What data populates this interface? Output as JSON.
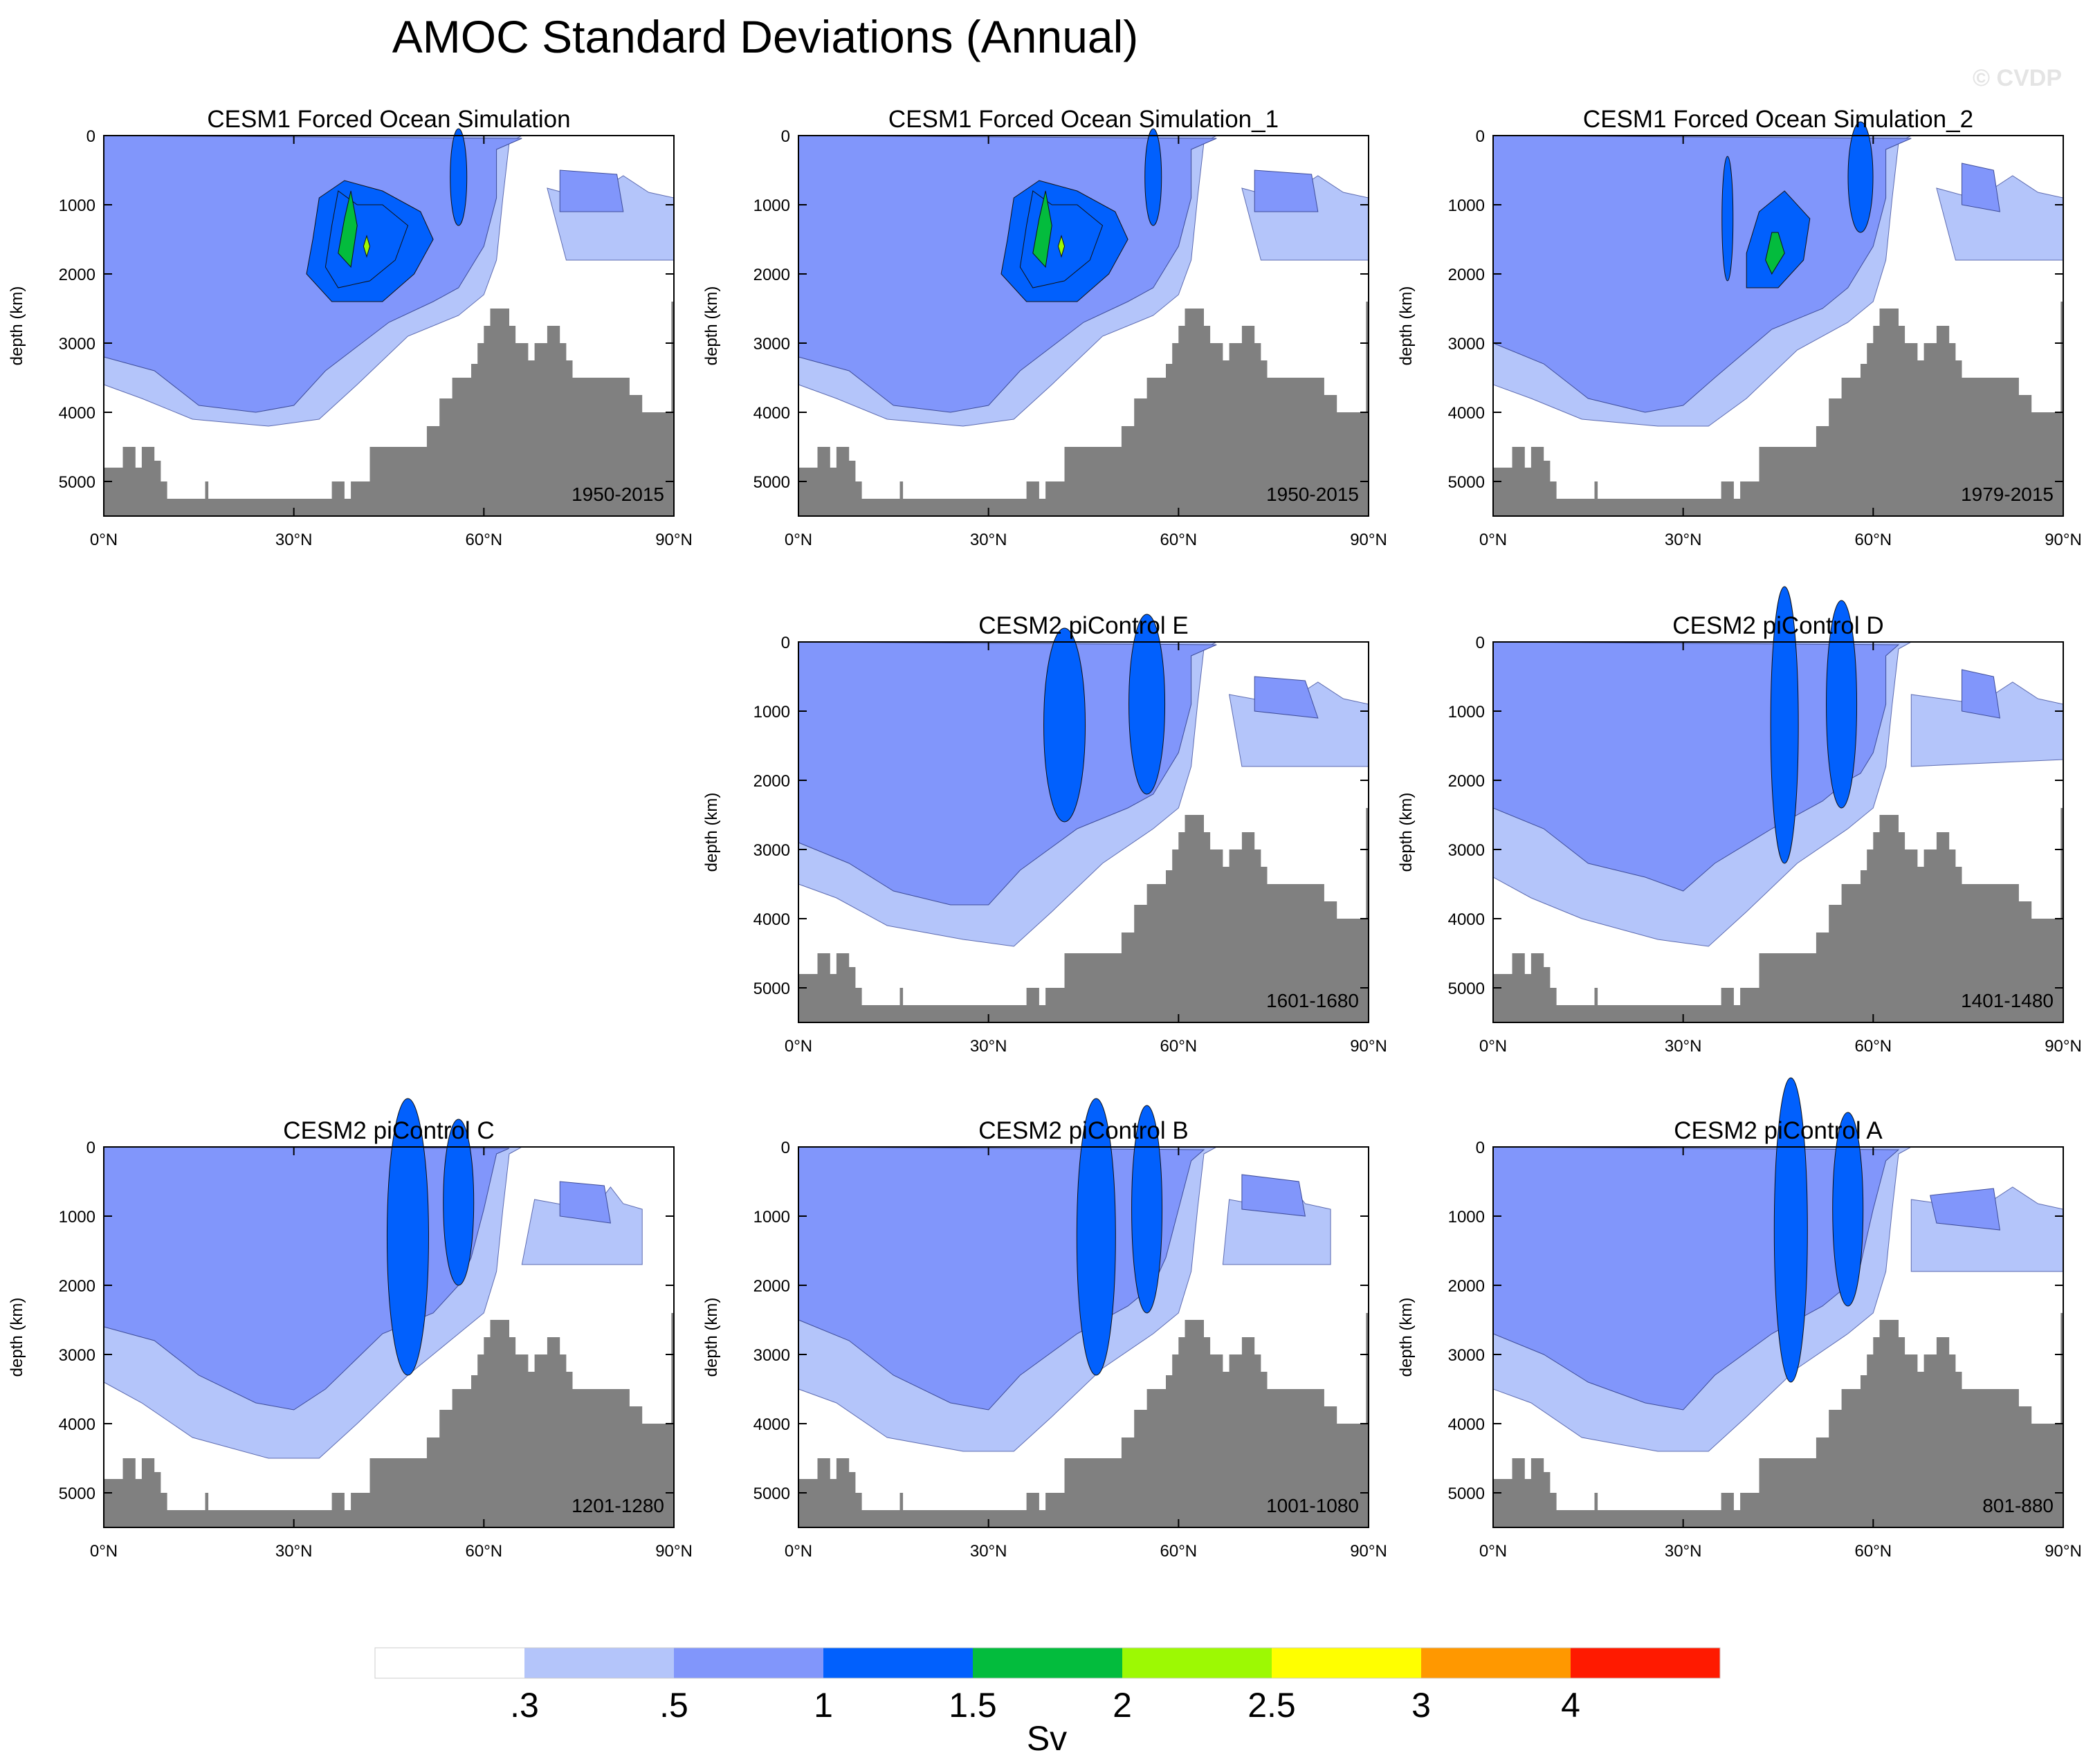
{
  "figure": {
    "title": "AMOC Standard Deviations (Annual)",
    "watermark": "© CVDP"
  },
  "chart_data": {
    "type": "contour",
    "xlabel": "",
    "ylabel": "depth (km)",
    "x_ticks": [
      "0°N",
      "30°N",
      "60°N",
      "90°N"
    ],
    "y_ticks": [
      "0",
      "1000",
      "2000",
      "3000",
      "4000",
      "5000"
    ],
    "xlim": [
      0,
      90
    ],
    "ylim": [
      5500,
      0
    ],
    "colors": {
      "land": "#808080",
      "frame": "#000000"
    },
    "colorbar": {
      "label": "Sv",
      "levels": [
        ".3",
        ".5",
        "1",
        "1.5",
        "2",
        "2.5",
        "3",
        "4"
      ],
      "colors": [
        "#ffffff",
        "#b4c5fa",
        "#8196fb",
        "#0160fd",
        "#03bc3d",
        "#9df903",
        "#ffff00",
        "#ff9800",
        "#ff1a00"
      ]
    },
    "panels": [
      {
        "title": "CESM1 Forced Ocean Simulation",
        "period": "1950-2015",
        "max_level": 2.5,
        "variant": 0
      },
      {
        "title": "CESM1 Forced Ocean Simulation_1",
        "period": "1950-2015",
        "max_level": 2.5,
        "variant": 0
      },
      {
        "title": "CESM1 Forced Ocean Simulation_2",
        "period": "1979-2015",
        "max_level": 2.0,
        "variant": 1
      },
      {
        "title": "CESM2 piControl E",
        "period": "1601-1680",
        "max_level": 1.5,
        "variant": 2
      },
      {
        "title": "CESM2 piControl D",
        "period": "1401-1480",
        "max_level": 1.5,
        "variant": 3
      },
      {
        "title": "CESM2 piControl C",
        "period": "1201-1280",
        "max_level": 1.5,
        "variant": 4
      },
      {
        "title": "CESM2 piControl B",
        "period": "1001-1080",
        "max_level": 1.5,
        "variant": 5
      },
      {
        "title": "CESM2 piControl A",
        "period": "801-880",
        "max_level": 1.5,
        "variant": 6
      }
    ],
    "bathymetry_depth_m": [
      [
        0,
        4800
      ],
      [
        3,
        4800
      ],
      [
        3,
        4500
      ],
      [
        5,
        4500
      ],
      [
        5,
        4800
      ],
      [
        6,
        4800
      ],
      [
        6,
        4500
      ],
      [
        8,
        4500
      ],
      [
        8,
        4700
      ],
      [
        9,
        4700
      ],
      [
        9,
        5000
      ],
      [
        10,
        5000
      ],
      [
        10,
        5250
      ],
      [
        16,
        5250
      ],
      [
        16,
        5000
      ],
      [
        16.5,
        5000
      ],
      [
        16.5,
        5250
      ],
      [
        36,
        5250
      ],
      [
        36,
        5000
      ],
      [
        38,
        5000
      ],
      [
        38,
        5250
      ],
      [
        39,
        5250
      ],
      [
        39,
        5000
      ],
      [
        42,
        5000
      ],
      [
        42,
        4500
      ],
      [
        51,
        4500
      ],
      [
        51,
        4200
      ],
      [
        53,
        4200
      ],
      [
        53,
        3800
      ],
      [
        55,
        3800
      ],
      [
        55,
        3500
      ],
      [
        58,
        3500
      ],
      [
        58,
        3300
      ],
      [
        59,
        3300
      ],
      [
        59,
        3000
      ],
      [
        60,
        3000
      ],
      [
        60,
        2750
      ],
      [
        61,
        2750
      ],
      [
        61,
        2500
      ],
      [
        64,
        2500
      ],
      [
        64,
        2750
      ],
      [
        65,
        2750
      ],
      [
        65,
        3000
      ],
      [
        67,
        3000
      ],
      [
        67,
        3250
      ],
      [
        68,
        3250
      ],
      [
        68,
        3000
      ],
      [
        70,
        3000
      ],
      [
        70,
        2750
      ],
      [
        72,
        2750
      ],
      [
        72,
        3000
      ],
      [
        73,
        3000
      ],
      [
        73,
        3250
      ],
      [
        74,
        3250
      ],
      [
        74,
        3500
      ],
      [
        78,
        3500
      ],
      [
        78,
        3500
      ],
      [
        83,
        3500
      ],
      [
        83,
        3750
      ],
      [
        85,
        3750
      ],
      [
        85,
        4000
      ],
      [
        90,
        4000
      ]
    ]
  }
}
